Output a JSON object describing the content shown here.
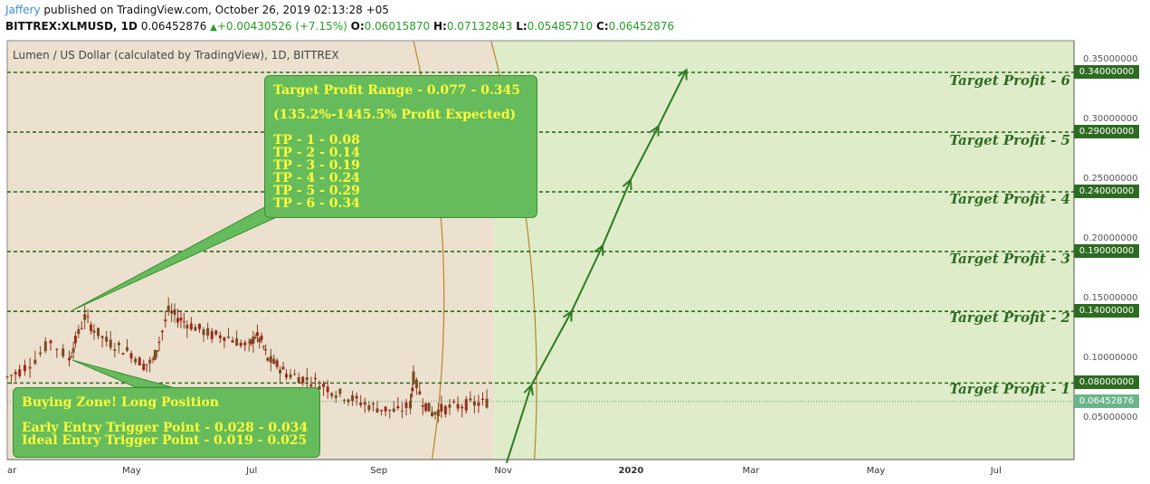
{
  "header": {
    "author": "Jaffery",
    "published": " published on TradingView.com, October 26, 2019 02:13:28 +05",
    "symbol": "BITTREX:XLMUSD, 1D",
    "last": "0.06452876",
    "change_arrow": "▲",
    "change": "+0.00430526 (+7.15%)",
    "o_label": "O:",
    "o_value": "0.06015870",
    "h_label": "H:",
    "h_value": "0.07132843",
    "l_label": "L:",
    "l_value": "0.05485710",
    "c_label": "C:",
    "c_value": "0.06452876"
  },
  "symbol_title": "Lumen / US Dollar (calculated by TradingView), 1D, BITTREX",
  "colors": {
    "zone_tan": "#ece1cf",
    "zone_green": "#deecc9",
    "target_green": "#2e6b22",
    "arrow_green": "#2d7a1f",
    "callout_bg": "#66bb5c",
    "callout_text": "#ffff3a",
    "candle_up": "#7a4a22",
    "candle_down": "#9c2a1a",
    "last_price_tag": "#6bb58a"
  },
  "callouts": {
    "targets": {
      "title": "Target Profit Range - 0.077 - 0.345",
      "subtitle": "(135.2%-1445.5% Profit Expected)",
      "items": [
        "TP - 1 - 0.08",
        "TP - 2 - 0.14",
        "TP - 3 - 0.19",
        "TP - 4 - 0.24",
        "TP - 5 - 0.29",
        "TP - 6 - 0.34"
      ]
    },
    "buying": {
      "title": "Buying Zone! Long Position",
      "early": "Early Entry Trigger Point - 0.028 - 0.034",
      "ideal": "Ideal Entry Trigger Point - 0.019 - 0.025"
    }
  },
  "target_labels": [
    "Target Profit - 1",
    "Target Profit - 2",
    "Target Profit - 3",
    "Target Profit - 4",
    "Target Profit - 5",
    "Target Profit - 6"
  ],
  "chart_data": {
    "type": "candlestick",
    "title": "Lumen / US Dollar (calculated by TradingView), 1D, BITTREX",
    "ylim": [
      0.0,
      0.36
    ],
    "y_ticks": [
      "0.35000000",
      "0.30000000",
      "0.25000000",
      "0.20000000",
      "0.15000000",
      "0.10000000",
      "0.05000000"
    ],
    "y_tick_values": [
      0.35,
      0.3,
      0.25,
      0.2,
      0.15,
      0.1,
      0.05
    ],
    "x_ticks": [
      "ar",
      "May",
      "Jul",
      "Sep",
      "Nov",
      "2020",
      "Mar",
      "May",
      "Jul"
    ],
    "x_tick_month_index": [
      0,
      2,
      4,
      6,
      8,
      10,
      12,
      14,
      16
    ],
    "x_range_month_index": [
      0,
      17.2
    ],
    "target_levels": [
      0.08,
      0.14,
      0.19,
      0.24,
      0.29,
      0.34
    ],
    "target_level_labels": [
      "0.08000000",
      "0.14000000",
      "0.19000000",
      "0.24000000",
      "0.29000000",
      "0.34000000"
    ],
    "last_price": 0.06452876,
    "last_price_label": "0.06452876",
    "price_series": {
      "month_index": [
        0.0,
        0.2,
        0.45,
        0.7,
        1.0,
        1.1,
        1.25,
        1.4,
        1.6,
        1.8,
        2.0,
        2.2,
        2.35,
        2.45,
        2.6,
        2.75,
        2.9,
        3.1,
        3.3,
        3.5,
        3.7,
        3.9,
        4.0,
        4.1,
        4.2,
        4.35,
        4.5,
        4.7,
        4.9,
        5.1,
        5.3,
        5.5,
        5.7,
        5.9,
        6.1,
        6.3,
        6.5,
        6.55,
        6.7,
        6.85,
        7.0,
        7.2,
        7.4,
        7.6,
        7.8
      ],
      "close": [
        0.085,
        0.09,
        0.1,
        0.115,
        0.1,
        0.115,
        0.135,
        0.125,
        0.115,
        0.11,
        0.105,
        0.095,
        0.098,
        0.115,
        0.14,
        0.135,
        0.13,
        0.125,
        0.12,
        0.12,
        0.115,
        0.11,
        0.12,
        0.115,
        0.1,
        0.095,
        0.088,
        0.085,
        0.082,
        0.078,
        0.072,
        0.068,
        0.064,
        0.06,
        0.058,
        0.056,
        0.062,
        0.085,
        0.065,
        0.055,
        0.058,
        0.06,
        0.062,
        0.063,
        0.0645
      ]
    },
    "projection_path": [
      [
        8.05,
        0.013
      ],
      [
        8.45,
        0.078
      ],
      [
        9.1,
        0.14
      ],
      [
        9.6,
        0.195
      ],
      [
        10.05,
        0.25
      ],
      [
        10.5,
        0.295
      ],
      [
        10.95,
        0.342
      ]
    ],
    "zones": {
      "tan_month_range": [
        0,
        7.85
      ],
      "green_month_range": [
        7.85,
        17.2
      ]
    }
  }
}
